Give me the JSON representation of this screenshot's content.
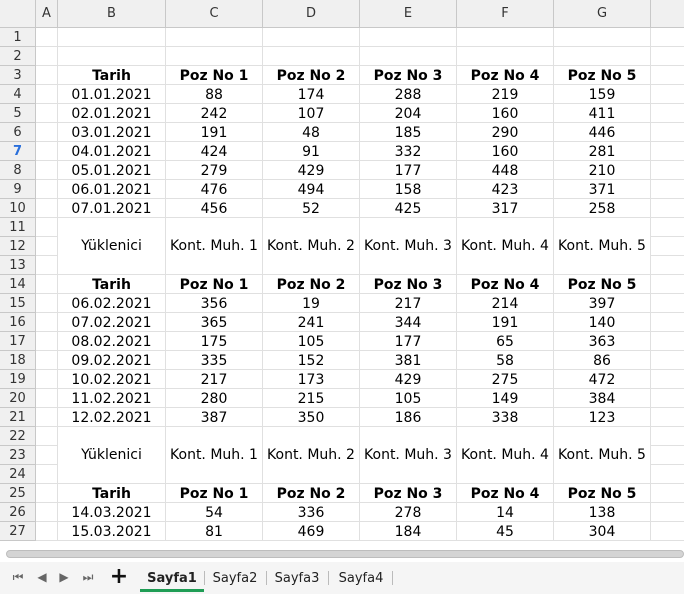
{
  "columns": [
    "A",
    "B",
    "C",
    "D",
    "E",
    "F",
    "G"
  ],
  "rows": [
    "1",
    "2",
    "3",
    "4",
    "5",
    "6",
    "7",
    "8",
    "9",
    "10",
    "11",
    "12",
    "13",
    "14",
    "15",
    "16",
    "17",
    "18",
    "19",
    "20",
    "21",
    "22",
    "23",
    "24",
    "25",
    "26",
    "27"
  ],
  "active_row": "7",
  "blocks": [
    {
      "header": [
        "Tarih",
        "Poz No 1",
        "Poz No 2",
        "Poz No 3",
        "Poz No 4",
        "Poz No 5"
      ],
      "rows": [
        [
          "01.01.2021",
          "88",
          "174",
          "288",
          "219",
          "159"
        ],
        [
          "02.01.2021",
          "242",
          "107",
          "204",
          "160",
          "411"
        ],
        [
          "03.01.2021",
          "191",
          "48",
          "185",
          "290",
          "446"
        ],
        [
          "04.01.2021",
          "424",
          "91",
          "332",
          "160",
          "281"
        ],
        [
          "05.01.2021",
          "279",
          "429",
          "177",
          "448",
          "210"
        ],
        [
          "06.01.2021",
          "476",
          "494",
          "158",
          "423",
          "371"
        ],
        [
          "07.01.2021",
          "456",
          "52",
          "425",
          "317",
          "258"
        ]
      ],
      "contractor_row": [
        "Yüklenici",
        "Kont. Muh. 1",
        "Kont. Muh. 2",
        "Kont. Muh. 3",
        "Kont. Muh. 4",
        "Kont. Muh. 5"
      ]
    },
    {
      "header": [
        "Tarih",
        "Poz No 1",
        "Poz No 2",
        "Poz No 3",
        "Poz No 4",
        "Poz No 5"
      ],
      "rows": [
        [
          "06.02.2021",
          "356",
          "19",
          "217",
          "214",
          "397"
        ],
        [
          "07.02.2021",
          "365",
          "241",
          "344",
          "191",
          "140"
        ],
        [
          "08.02.2021",
          "175",
          "105",
          "177",
          "65",
          "363"
        ],
        [
          "09.02.2021",
          "335",
          "152",
          "381",
          "58",
          "86"
        ],
        [
          "10.02.2021",
          "217",
          "173",
          "429",
          "275",
          "472"
        ],
        [
          "11.02.2021",
          "280",
          "215",
          "105",
          "149",
          "384"
        ],
        [
          "12.02.2021",
          "387",
          "350",
          "186",
          "338",
          "123"
        ]
      ],
      "contractor_row": [
        "Yüklenici",
        "Kont. Muh. 1",
        "Kont. Muh. 2",
        "Kont. Muh. 3",
        "Kont. Muh. 4",
        "Kont. Muh. 5"
      ]
    },
    {
      "header": [
        "Tarih",
        "Poz No 1",
        "Poz No 2",
        "Poz No 3",
        "Poz No 4",
        "Poz No 5"
      ],
      "rows": [
        [
          "14.03.2021",
          "54",
          "336",
          "278",
          "14",
          "138"
        ],
        [
          "15.03.2021",
          "81",
          "469",
          "184",
          "45",
          "304"
        ]
      ]
    }
  ],
  "sheet_tabs": [
    "Sayfa1",
    "Sayfa2",
    "Sayfa3",
    "Sayfa4"
  ],
  "active_tab": "Sayfa1",
  "nav_icons": [
    "first-sheet-icon",
    "prev-sheet-icon",
    "next-sheet-icon",
    "last-sheet-icon"
  ],
  "add_sheet_label": "+",
  "colors": {
    "active_row_header": "#2a6fdb",
    "active_tab_underline": "#1f9d55"
  }
}
